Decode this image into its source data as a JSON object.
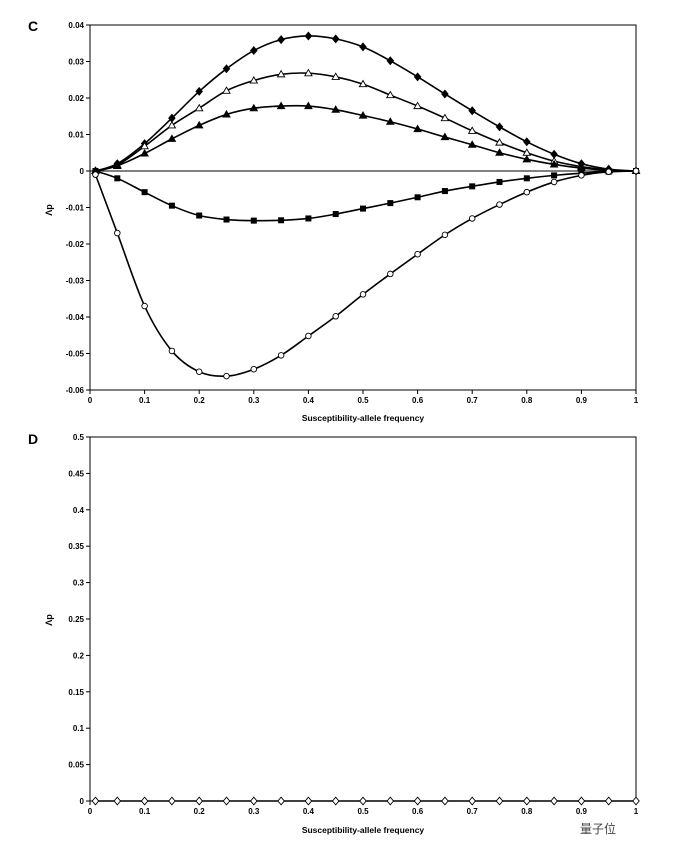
{
  "chart_data": [
    {
      "panel": "C",
      "type": "line",
      "xlabel": "Susceptibility-allele frequency",
      "ylabel": "Λp",
      "xlim": [
        0,
        1
      ],
      "ylim": [
        -0.06,
        0.04
      ],
      "xticks": [
        "0",
        "0.1",
        "0.2",
        "0.3",
        "0.4",
        "0.5",
        "0.6",
        "0.7",
        "0.8",
        "0.9",
        "1"
      ],
      "yticks": [
        "0.04",
        "0.03",
        "0.02",
        "0.01",
        "0",
        "-0.01",
        "-0.02",
        "-0.03",
        "-0.04",
        "-0.05",
        "-0.06"
      ],
      "grid": false,
      "x": [
        0.01,
        0.05,
        0.1,
        0.15,
        0.2,
        0.25,
        0.3,
        0.35,
        0.4,
        0.45,
        0.5,
        0.55,
        0.6,
        0.65,
        0.7,
        0.75,
        0.8,
        0.85,
        0.9,
        0.95,
        1
      ],
      "series": [
        {
          "marker": "filled-diamond",
          "values": [
            0,
            0.002,
            0.0075,
            0.0145,
            0.0218,
            0.028,
            0.033,
            0.036,
            0.037,
            0.0362,
            0.034,
            0.0302,
            0.0258,
            0.0211,
            0.0165,
            0.0121,
            0.008,
            0.0046,
            0.002,
            0.0005,
            0
          ]
        },
        {
          "marker": "open-triangle",
          "values": [
            0,
            0.0016,
            0.0068,
            0.0125,
            0.0172,
            0.022,
            0.0248,
            0.0265,
            0.0268,
            0.0258,
            0.0238,
            0.0208,
            0.0178,
            0.0145,
            0.011,
            0.0078,
            0.005,
            0.0027,
            0.0012,
            0.0003,
            0
          ]
        },
        {
          "marker": "filled-triangle",
          "values": [
            0,
            0.0014,
            0.0048,
            0.0088,
            0.0125,
            0.0155,
            0.0172,
            0.0178,
            0.0178,
            0.0168,
            0.0152,
            0.0135,
            0.0115,
            0.0093,
            0.0072,
            0.005,
            0.0032,
            0.0018,
            0.0008,
            0.0002,
            0
          ]
        },
        {
          "marker": "filled-square",
          "values": [
            0,
            -0.002,
            -0.0058,
            -0.0095,
            -0.0122,
            -0.0133,
            -0.0136,
            -0.0135,
            -0.013,
            -0.0118,
            -0.0103,
            -0.0088,
            -0.0072,
            -0.0055,
            -0.0042,
            -0.003,
            -0.002,
            -0.0012,
            -0.0006,
            -0.0002,
            0
          ]
        },
        {
          "marker": "open-circle",
          "values": [
            -0.001,
            -0.017,
            -0.037,
            -0.0493,
            -0.055,
            -0.0562,
            -0.0543,
            -0.0505,
            -0.0452,
            -0.0398,
            -0.0338,
            -0.0282,
            -0.0228,
            -0.0175,
            -0.013,
            -0.0092,
            -0.0058,
            -0.003,
            -0.0012,
            -0.0002,
            0
          ]
        }
      ]
    },
    {
      "panel": "D",
      "type": "line",
      "xlabel": "Susceptibility-allele frequency",
      "ylabel": "Λp",
      "xlim": [
        0,
        1
      ],
      "ylim": [
        0,
        0.5
      ],
      "xticks": [
        "0",
        "0.1",
        "0.2",
        "0.3",
        "0.4",
        "0.5",
        "0.6",
        "0.7",
        "0.8",
        "0.9",
        "1"
      ],
      "yticks": [
        "0.5",
        "0.45",
        "0.4",
        "0.35",
        "0.3",
        "0.25",
        "0.2",
        "0.15",
        "0.1",
        "0.05",
        "0"
      ],
      "grid": false,
      "x": [
        0.01,
        0.05,
        0.1,
        0.15,
        0.2,
        0.25,
        0.3,
        0.35,
        0.4,
        0.45,
        0.5,
        0.55,
        0.6,
        0.65,
        0.7,
        0.75,
        0.8,
        0.85,
        0.9,
        0.95,
        1
      ],
      "series": [
        {
          "marker": "open-diamond",
          "values": [
            0,
            0,
            0,
            0,
            0,
            0,
            0,
            0,
            0,
            0,
            0,
            0,
            0,
            0,
            0,
            0,
            0,
            0,
            0,
            0,
            0
          ]
        }
      ]
    }
  ],
  "watermark": "量子位"
}
